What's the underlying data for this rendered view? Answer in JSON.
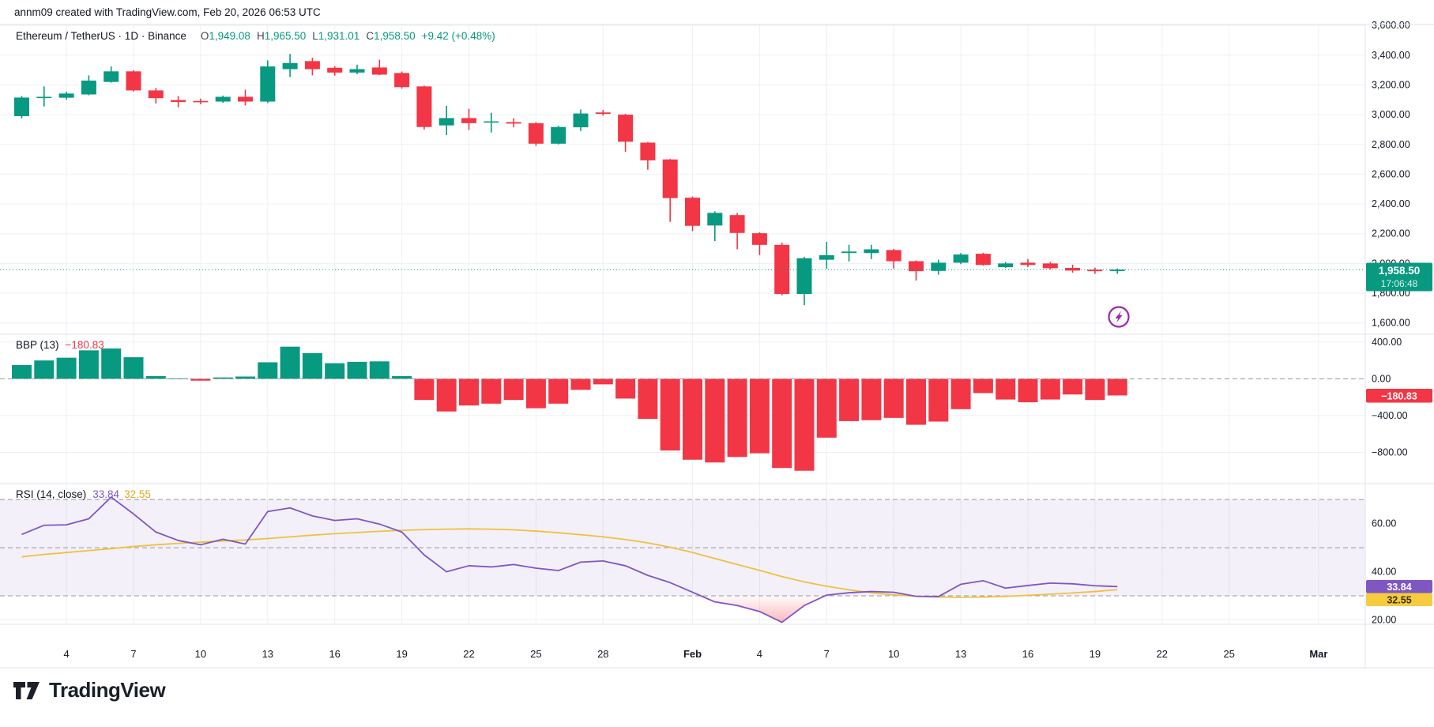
{
  "attribution": "annm09 created with TradingView.com, Feb 20, 2026 06:53 UTC",
  "logo": {
    "text": "TradingView",
    "mark": "tradingview-17-mark"
  },
  "symbol_legend": {
    "symbol": "Ethereum / TetherUS · 1D · Binance",
    "ohlc": [
      [
        "O",
        "1,949.08"
      ],
      [
        "H",
        "1,965.50"
      ],
      [
        "L",
        "1,931.01"
      ],
      [
        "C",
        "1,958.50"
      ]
    ],
    "change": "+9.42 (+0.48%)"
  },
  "indicator_legends": {
    "bbp_label": "BBP (13)",
    "bbp_value": "−180.83",
    "rsi_label": "RSI (14, close)",
    "rsi_value": "33.84",
    "rsi_ma_value": "32.55"
  },
  "badges": {
    "price": {
      "line1": "1,958.50",
      "line2": "17:06:48"
    },
    "bbp": "−180.83",
    "rsi": "33.84",
    "rsi_ma": "32.55"
  },
  "colors": {
    "up": "#089981",
    "down": "#F23645",
    "text": "#131722",
    "grid": "#eef0f4",
    "divider": "#e0e3eb",
    "dashed": "#9598a1",
    "price_line": "#089981",
    "rsi_line": "#7E57C2",
    "rsi_ma_line": "#EFC13D",
    "rsi_band_fill": "rgba(126,87,194,0.09)",
    "rsi_oversold_fill": "#F23645",
    "badge_rsi_bg": "#7E57C2",
    "badge_rsi_ma_bg": "#F6CB3E",
    "flash_icon": "#9C27B0"
  },
  "chart_data": [
    {
      "type": "candlestick",
      "title": "Ethereum / TetherUS 1D Binance",
      "ylim": [
        1524,
        3606
      ],
      "y_ticks": [
        [
          "3,600.00",
          3600
        ],
        [
          "3,400.00",
          3400
        ],
        [
          "3,200.00",
          3200
        ],
        [
          "3,000.00",
          3000
        ],
        [
          "2,800.00",
          2800
        ],
        [
          "2,600.00",
          2600
        ],
        [
          "2,400.00",
          2400
        ],
        [
          "2,200.00",
          2200
        ],
        [
          "2,000.00",
          2000
        ],
        [
          "1,800.00",
          1800
        ],
        [
          "1,600.00",
          1600
        ]
      ],
      "last_price": 1958.5,
      "ohlc": [
        [
          2990,
          3125,
          2975,
          3115
        ],
        [
          3115,
          3190,
          3055,
          3120
        ],
        [
          3114,
          3155,
          3100,
          3142
        ],
        [
          3136,
          3264,
          3130,
          3229
        ],
        [
          3220,
          3324,
          3215,
          3291
        ],
        [
          3291,
          3298,
          3155,
          3163
        ],
        [
          3163,
          3180,
          3075,
          3111
        ],
        [
          3098,
          3125,
          3050,
          3085
        ],
        [
          3092,
          3108,
          3070,
          3085
        ],
        [
          3088,
          3128,
          3080,
          3120
        ],
        [
          3120,
          3168,
          3062,
          3088
        ],
        [
          3088,
          3365,
          3078,
          3324
        ],
        [
          3306,
          3408,
          3253,
          3347
        ],
        [
          3360,
          3383,
          3264,
          3306
        ],
        [
          3315,
          3325,
          3262,
          3283
        ],
        [
          3283,
          3336,
          3272,
          3306
        ],
        [
          3317,
          3369,
          3266,
          3269
        ],
        [
          3280,
          3290,
          3175,
          3185
        ],
        [
          3190,
          3195,
          2900,
          2917
        ],
        [
          2928,
          3059,
          2863,
          2977
        ],
        [
          2977,
          3040,
          2897,
          2943
        ],
        [
          2948,
          3013,
          2880,
          2955
        ],
        [
          2950,
          2975,
          2915,
          2940
        ],
        [
          2942,
          2950,
          2790,
          2805
        ],
        [
          2805,
          2925,
          2800,
          2917
        ],
        [
          2915,
          3035,
          2890,
          3008
        ],
        [
          3015,
          3032,
          2993,
          3005
        ],
        [
          3000,
          3006,
          2750,
          2818
        ],
        [
          2812,
          2816,
          2630,
          2693
        ],
        [
          2699,
          2702,
          2280,
          2439
        ],
        [
          2442,
          2450,
          2217,
          2253
        ],
        [
          2255,
          2350,
          2150,
          2340
        ],
        [
          2325,
          2340,
          2095,
          2205
        ],
        [
          2203,
          2210,
          2056,
          2125
        ],
        [
          2125,
          2140,
          1785,
          1795
        ],
        [
          1795,
          2045,
          1720,
          2035
        ],
        [
          2025,
          2145,
          1965,
          2055
        ],
        [
          2070,
          2125,
          2013,
          2080
        ],
        [
          2070,
          2125,
          2029,
          2095
        ],
        [
          2090,
          2098,
          1965,
          2015
        ],
        [
          2015,
          2020,
          1885,
          1948
        ],
        [
          1950,
          2025,
          1925,
          2005
        ],
        [
          2005,
          2070,
          1995,
          2060
        ],
        [
          2065,
          2072,
          1985,
          1990
        ],
        [
          1975,
          2010,
          1970,
          2000
        ],
        [
          2005,
          2030,
          1975,
          1990
        ],
        [
          2000,
          2010,
          1960,
          1968
        ],
        [
          1970,
          1992,
          1938,
          1952
        ],
        [
          1958,
          1972,
          1930,
          1948
        ],
        [
          1949.08,
          1965.5,
          1931.01,
          1958.5
        ]
      ]
    },
    {
      "type": "bar",
      "title": "BBP (13)",
      "ylim": [
        -1140,
        485
      ],
      "y_ticks": [
        [
          "400.00",
          400
        ],
        [
          "0.00",
          0
        ],
        [
          "−400.00",
          -400
        ],
        [
          "−800.00",
          -800
        ]
      ],
      "zero_line": 0,
      "values": [
        150,
        200,
        230,
        310,
        330,
        235,
        30,
        5,
        -20,
        15,
        25,
        180,
        350,
        280,
        170,
        185,
        190,
        30,
        -230,
        -355,
        -290,
        -270,
        -230,
        -320,
        -270,
        -120,
        -60,
        -215,
        -435,
        -780,
        -880,
        -910,
        -850,
        -810,
        -970,
        -1000,
        -640,
        -460,
        -450,
        -425,
        -500,
        -465,
        -330,
        -155,
        -225,
        -255,
        -225,
        -170,
        -230,
        -180.83
      ]
    },
    {
      "type": "line",
      "title": "RSI (14, close)",
      "ylim": [
        18.2,
        76.6
      ],
      "y_ticks": [
        [
          "60.00",
          60
        ],
        [
          "40.00",
          40
        ],
        [
          "20.00",
          20
        ]
      ],
      "dashed_levels": [
        70,
        50,
        30
      ],
      "band": [
        30,
        70
      ],
      "series": [
        {
          "name": "RSI",
          "values": [
            55.5,
            59.3,
            59.5,
            62,
            71,
            64,
            56.5,
            53,
            51.2,
            53.5,
            51.5,
            65,
            66.5,
            63.2,
            61.3,
            62,
            59.8,
            56.5,
            47,
            40,
            42.5,
            42,
            43,
            41.5,
            40.5,
            44,
            44.5,
            42.5,
            38.5,
            35.5,
            31.5,
            27.5,
            26,
            23.5,
            19,
            26,
            30.3,
            31.3,
            31.8,
            31.5,
            29.8,
            29.7,
            34.8,
            36.3,
            33.2,
            34.3,
            35.3,
            35,
            34.2,
            33.84
          ]
        },
        {
          "name": "RSI-based MA",
          "values": [
            46.2,
            47.2,
            48,
            48.8,
            49.6,
            50.5,
            51.2,
            51.8,
            52.3,
            52.8,
            53.2,
            53.8,
            54.5,
            55.2,
            55.8,
            56.3,
            56.8,
            57.2,
            57.5,
            57.7,
            57.8,
            57.7,
            57.4,
            56.9,
            56.2,
            55.4,
            54.5,
            53.4,
            52,
            50.2,
            48,
            45.5,
            43,
            40.6,
            38,
            35.8,
            34,
            32.5,
            31.3,
            30.4,
            29.8,
            29.5,
            29.4,
            29.5,
            29.8,
            30.2,
            30.7,
            31.2,
            31.8,
            32.55
          ]
        }
      ]
    }
  ],
  "x_axis": {
    "labels": [
      {
        "t": "4",
        "i": 2
      },
      {
        "t": "7",
        "i": 5
      },
      {
        "t": "10",
        "i": 8
      },
      {
        "t": "13",
        "i": 11
      },
      {
        "t": "16",
        "i": 14
      },
      {
        "t": "19",
        "i": 17
      },
      {
        "t": "22",
        "i": 20
      },
      {
        "t": "25",
        "i": 23
      },
      {
        "t": "28",
        "i": 26
      },
      {
        "t": "Feb",
        "i": 30,
        "bold": true
      },
      {
        "t": "4",
        "i": 33
      },
      {
        "t": "7",
        "i": 36
      },
      {
        "t": "10",
        "i": 39
      },
      {
        "t": "13",
        "i": 42
      },
      {
        "t": "16",
        "i": 45
      },
      {
        "t": "19",
        "i": 48
      },
      {
        "t": "22",
        "i": 51
      },
      {
        "t": "25",
        "i": 54
      },
      {
        "t": "Mar",
        "i": 58,
        "bold": true
      }
    ]
  }
}
